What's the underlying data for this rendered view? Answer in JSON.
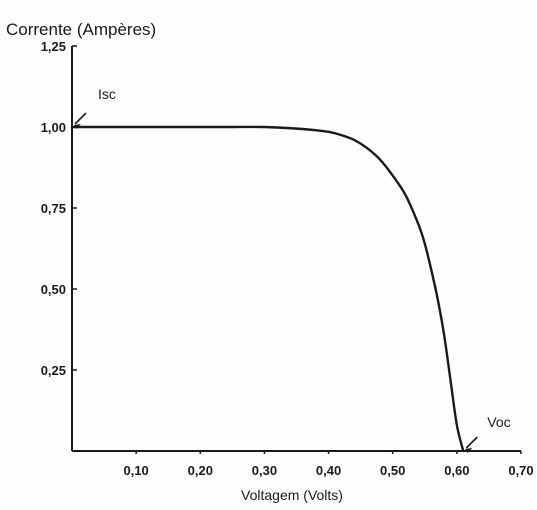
{
  "chart_data": {
    "type": "line",
    "title": "",
    "ylabel": "Corrente (Ampères)",
    "xlabel": "Voltagem (Volts)",
    "xlim": [
      0,
      0.7
    ],
    "ylim": [
      0,
      1.25
    ],
    "x_ticks": [
      0.1,
      0.2,
      0.3,
      0.4,
      0.5,
      0.6,
      0.7
    ],
    "x_tick_labels": [
      "0,10",
      "0,20",
      "0,30",
      "0,40",
      "0,50",
      "0,60",
      "0,70"
    ],
    "y_ticks": [
      0.25,
      0.5,
      0.75,
      1.0,
      1.25
    ],
    "y_tick_labels": [
      "0,25",
      "0,50",
      "0,75",
      "1,00",
      "1,25"
    ],
    "grid": false,
    "series": [
      {
        "x": [
          0,
          0.05,
          0.1,
          0.15,
          0.2,
          0.25,
          0.3,
          0.35,
          0.38,
          0.4,
          0.42,
          0.44,
          0.46,
          0.48,
          0.5,
          0.52,
          0.54,
          0.55,
          0.56,
          0.57,
          0.58,
          0.59,
          0.6,
          0.61
        ],
        "y": [
          1.0,
          1.0,
          1.0,
          1.0,
          1.0,
          1.0,
          1.0,
          0.995,
          0.99,
          0.985,
          0.975,
          0.96,
          0.935,
          0.9,
          0.85,
          0.79,
          0.7,
          0.64,
          0.56,
          0.47,
          0.36,
          0.22,
          0.08,
          0.0
        ]
      }
    ],
    "annotations": [
      {
        "text": "Isc",
        "x": 0,
        "y": 1.0
      },
      {
        "text": "Voc",
        "x": 0.61,
        "y": 0.0
      }
    ]
  },
  "colors": {
    "line": "#1a1a1a",
    "axis": "#1a1a1a",
    "background": "#fefefe"
  }
}
